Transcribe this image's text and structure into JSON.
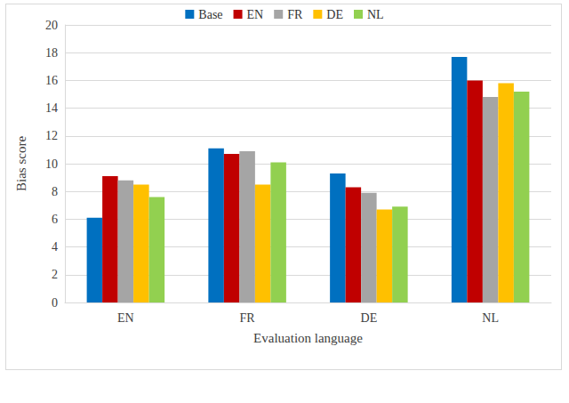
{
  "chart_data": {
    "type": "bar",
    "x_label": "Evaluation language",
    "y_label": "Bias score",
    "categories": [
      "EN",
      "FR",
      "DE",
      "NL"
    ],
    "series": [
      {
        "name": "Base",
        "color": "#0070C0",
        "values": [
          6.1,
          11.1,
          9.3,
          17.7
        ]
      },
      {
        "name": "EN",
        "color": "#C00000",
        "values": [
          9.1,
          10.7,
          8.3,
          16.0
        ]
      },
      {
        "name": "FR",
        "color": "#A5A5A5",
        "values": [
          8.8,
          10.9,
          7.9,
          14.8
        ]
      },
      {
        "name": "DE",
        "color": "#FFC000",
        "values": [
          8.5,
          8.5,
          6.7,
          15.8
        ]
      },
      {
        "name": "NL",
        "color": "#92D050",
        "values": [
          7.6,
          10.1,
          6.9,
          15.2
        ]
      }
    ],
    "ylim": [
      0,
      20
    ],
    "yticks": [
      0,
      2,
      4,
      6,
      8,
      10,
      12,
      14,
      16,
      18,
      20
    ],
    "grid": true,
    "legend": "top"
  }
}
